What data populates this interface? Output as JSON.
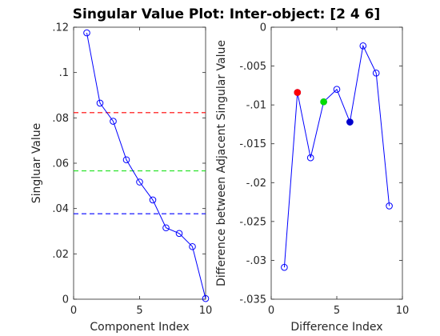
{
  "title": "Singular Value Plot: Inter-object: [2 4 6]",
  "chart_data": [
    {
      "type": "line",
      "xlabel": "Component Index",
      "ylabel": "Singluar Value",
      "xlim": [
        0,
        10
      ],
      "ylim": [
        0,
        0.12
      ],
      "xticks": [
        0,
        5,
        10
      ],
      "yticks": [
        0,
        0.02,
        0.04,
        0.06,
        0.08,
        0.1,
        0.12
      ],
      "grid": false,
      "series": [
        {
          "color": "#0000ff",
          "marker": "circle-open",
          "x": [
            1,
            2,
            3,
            4,
            5,
            6,
            7,
            8,
            9,
            10
          ],
          "y": [
            0.1175,
            0.0865,
            0.0785,
            0.0615,
            0.0517,
            0.0438,
            0.0315,
            0.029,
            0.0232,
            0.0003
          ]
        }
      ],
      "hlines": [
        {
          "y": 0.0823,
          "color": "#ff0000",
          "style": "dashed"
        },
        {
          "y": 0.0566,
          "color": "#00dd00",
          "style": "dashed"
        },
        {
          "y": 0.0377,
          "color": "#0000ff",
          "style": "dashed"
        }
      ]
    },
    {
      "type": "line",
      "xlabel": "Difference Index",
      "ylabel": "Difference between Adjacent Singular Value",
      "xlim": [
        0,
        10
      ],
      "ylim": [
        -0.035,
        0
      ],
      "xticks": [
        0,
        5,
        10
      ],
      "yticks": [
        -0.035,
        -0.03,
        -0.025,
        -0.02,
        -0.015,
        -0.01,
        -0.005,
        0
      ],
      "grid": false,
      "series": [
        {
          "color": "#0000ff",
          "marker": "circle-open",
          "x": [
            1,
            2,
            3,
            4,
            5,
            6,
            7,
            8,
            9
          ],
          "y": [
            -0.0309,
            -0.0084,
            -0.0168,
            -0.0096,
            -0.008,
            -0.0122,
            -0.0024,
            -0.0059,
            -0.023
          ]
        }
      ],
      "highlights": [
        {
          "x": 2,
          "y": -0.0084,
          "color": "#ff0000"
        },
        {
          "x": 4,
          "y": -0.0096,
          "color": "#00dd00"
        },
        {
          "x": 6,
          "y": -0.0122,
          "color": "#0000cc"
        }
      ]
    }
  ]
}
